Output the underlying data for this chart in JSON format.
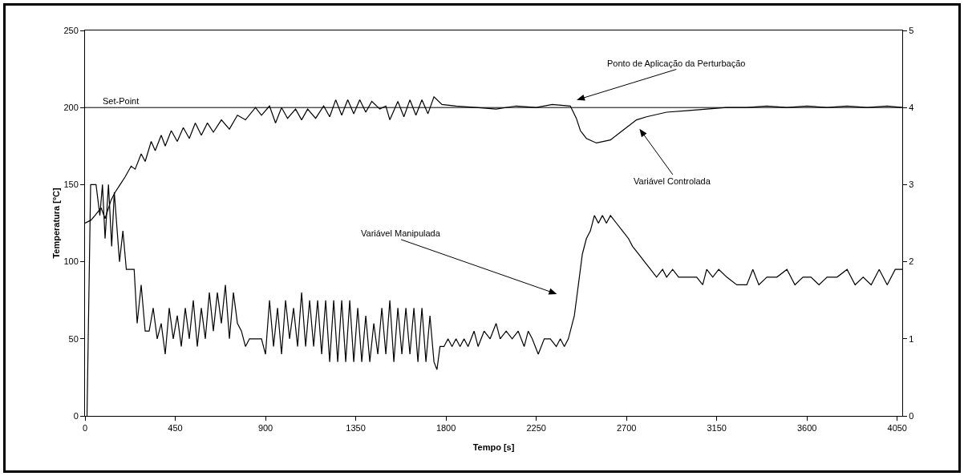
{
  "chart_data": {
    "type": "line",
    "xlabel": "Tempo [s]",
    "ylabel": "Temperatura [ºC]",
    "xlim": [
      0,
      4075
    ],
    "xticks": [
      0,
      450,
      900,
      1350,
      1800,
      2250,
      2700,
      3150,
      3600,
      4050
    ],
    "ylim": [
      0,
      250
    ],
    "yticks": [
      0,
      50,
      100,
      150,
      200,
      250
    ],
    "y2lim": [
      0,
      5
    ],
    "y2ticks": [
      0,
      1,
      2,
      3,
      4,
      5
    ],
    "grid": false,
    "marker": "none",
    "line_style": "solid",
    "ref_lines": [
      {
        "axis": "y",
        "value": 200,
        "label": "Set-Point",
        "color": "#000000",
        "line_style": "solid"
      }
    ],
    "annotations": [
      "Ponto de Aplicação da Perturbação",
      "Variável Controlada",
      "Variável Manipulada"
    ],
    "series": [
      {
        "color": "#000000",
        "x": [
          0,
          30,
          50,
          80,
          100,
          130,
          150,
          175,
          200,
          230,
          250,
          280,
          300,
          330,
          350,
          380,
          400,
          430,
          460,
          490,
          520,
          550,
          580,
          610,
          640,
          680,
          720,
          760,
          800,
          850,
          880,
          920,
          950,
          980,
          1010,
          1050,
          1080,
          1110,
          1150,
          1190,
          1220,
          1250,
          1280,
          1310,
          1340,
          1370,
          1400,
          1430,
          1470,
          1500,
          1520,
          1560,
          1590,
          1620,
          1650,
          1680,
          1710,
          1740,
          1780,
          1850,
          1950,
          2050,
          2150,
          2250,
          2330,
          2420,
          2450,
          2470,
          2500,
          2550,
          2620,
          2680,
          2750,
          2800,
          2900,
          3000,
          3100,
          3200,
          3300,
          3400,
          3500,
          3600,
          3700,
          3800,
          3900,
          4000,
          4075
        ],
        "values": [
          125,
          127,
          130,
          135,
          128,
          140,
          145,
          150,
          155,
          162,
          160,
          170,
          165,
          178,
          172,
          182,
          175,
          185,
          178,
          187,
          180,
          190,
          182,
          190,
          184,
          192,
          186,
          195,
          192,
          200,
          195,
          201,
          190,
          200,
          193,
          199,
          192,
          199,
          193,
          201,
          194,
          205,
          195,
          205,
          196,
          205,
          197,
          204,
          199,
          201,
          192,
          204,
          194,
          205,
          195,
          205,
          196,
          207,
          202,
          201,
          200,
          199,
          201,
          200,
          202,
          201,
          193,
          185,
          180,
          177,
          179,
          185,
          192,
          194,
          197,
          198,
          199,
          200,
          200,
          201,
          200,
          201,
          200,
          201,
          200,
          201,
          200
        ]
      },
      {
        "color": "#000000",
        "axis": "y2",
        "x": [
          10,
          28,
          55,
          74,
          87,
          100,
          117,
          133,
          146,
          172,
          189,
          206,
          218,
          245,
          260,
          280,
          300,
          320,
          340,
          360,
          380,
          400,
          420,
          440,
          460,
          480,
          500,
          520,
          540,
          560,
          580,
          600,
          620,
          640,
          660,
          680,
          700,
          720,
          740,
          760,
          780,
          800,
          820,
          850,
          880,
          900,
          920,
          940,
          960,
          980,
          1000,
          1020,
          1040,
          1060,
          1080,
          1100,
          1120,
          1140,
          1160,
          1180,
          1200,
          1220,
          1240,
          1260,
          1280,
          1300,
          1320,
          1340,
          1360,
          1380,
          1400,
          1420,
          1440,
          1460,
          1480,
          1500,
          1520,
          1540,
          1560,
          1580,
          1600,
          1620,
          1640,
          1660,
          1680,
          1700,
          1720,
          1740,
          1755,
          1770,
          1790,
          1810,
          1830,
          1850,
          1870,
          1890,
          1910,
          1940,
          1960,
          1990,
          2020,
          2050,
          2070,
          2100,
          2130,
          2160,
          2190,
          2210,
          2230,
          2260,
          2290,
          2320,
          2350,
          2370,
          2390,
          2410,
          2440,
          2460,
          2480,
          2500,
          2520,
          2540,
          2560,
          2580,
          2600,
          2620,
          2650,
          2680,
          2710,
          2730,
          2760,
          2790,
          2820,
          2850,
          2880,
          2900,
          2930,
          2960,
          3000,
          3050,
          3080,
          3100,
          3130,
          3160,
          3200,
          3250,
          3300,
          3330,
          3360,
          3400,
          3450,
          3500,
          3540,
          3580,
          3620,
          3660,
          3700,
          3750,
          3800,
          3840,
          3880,
          3920,
          3960,
          4000,
          4040,
          4075
        ],
        "values": [
          0,
          3,
          3,
          2.6,
          3,
          2.3,
          3,
          2.2,
          2.9,
          2.0,
          2.4,
          1.9,
          1.9,
          1.9,
          1.2,
          1.7,
          1.1,
          1.1,
          1.4,
          1.0,
          1.2,
          0.8,
          1.4,
          1.0,
          1.3,
          0.9,
          1.4,
          1.0,
          1.5,
          0.9,
          1.4,
          1.0,
          1.6,
          1.1,
          1.6,
          1.2,
          1.7,
          1.0,
          1.6,
          1.2,
          1.1,
          0.9,
          1.0,
          1.0,
          1.0,
          0.8,
          1.5,
          0.9,
          1.4,
          0.8,
          1.5,
          1.0,
          1.4,
          0.9,
          1.6,
          0.9,
          1.5,
          0.9,
          1.5,
          0.8,
          1.5,
          0.7,
          1.5,
          0.7,
          1.5,
          0.7,
          1.5,
          0.7,
          1.4,
          0.7,
          1.3,
          0.7,
          1.2,
          0.8,
          1.4,
          0.8,
          1.5,
          0.7,
          1.4,
          0.8,
          1.4,
          0.8,
          1.4,
          0.7,
          1.4,
          0.7,
          1.3,
          0.7,
          0.6,
          0.9,
          0.9,
          1.0,
          0.9,
          1.0,
          0.9,
          1.0,
          0.9,
          1.1,
          0.9,
          1.1,
          1.0,
          1.2,
          1.0,
          1.1,
          1.0,
          1.1,
          0.9,
          1.1,
          1.0,
          0.8,
          1.0,
          1.0,
          0.9,
          1.0,
          0.9,
          1.0,
          1.3,
          1.7,
          2.1,
          2.3,
          2.4,
          2.6,
          2.5,
          2.6,
          2.5,
          2.6,
          2.5,
          2.4,
          2.3,
          2.2,
          2.1,
          2.0,
          1.9,
          1.8,
          1.9,
          1.8,
          1.9,
          1.8,
          1.8,
          1.8,
          1.7,
          1.9,
          1.8,
          1.9,
          1.8,
          1.7,
          1.7,
          1.9,
          1.7,
          1.8,
          1.8,
          1.9,
          1.7,
          1.8,
          1.8,
          1.7,
          1.8,
          1.8,
          1.9,
          1.7,
          1.8,
          1.7,
          1.9,
          1.7,
          1.9,
          1.9
        ]
      }
    ]
  }
}
